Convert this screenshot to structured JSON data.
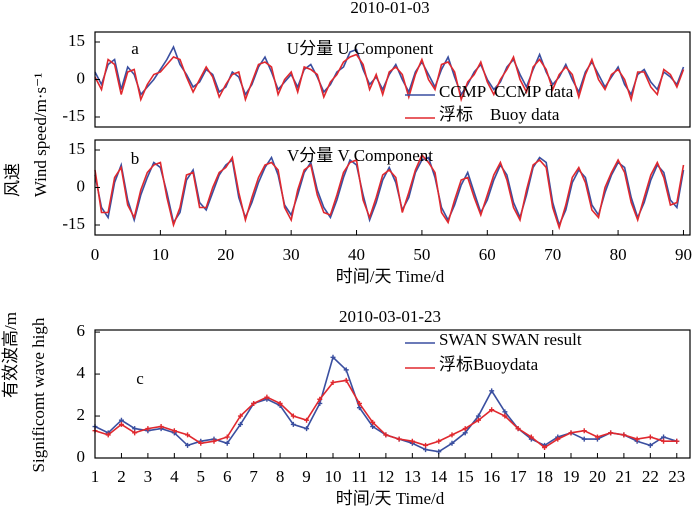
{
  "chart_data": [
    {
      "type": "line",
      "title": "2010-01-03",
      "panel_label": "a",
      "annotation": "U分量 U Component",
      "ylabel": [
        "风速",
        "Wind speed/m·s⁻¹"
      ],
      "legend": "lower right",
      "xlim": [
        0,
        91
      ],
      "ylim": [
        -19,
        19
      ],
      "yticks": [
        -15,
        0,
        15
      ],
      "x": [
        0,
        1,
        2,
        3,
        4,
        5,
        6,
        7,
        8,
        9,
        10,
        11,
        12,
        13,
        14,
        15,
        16,
        17,
        18,
        19,
        20,
        21,
        22,
        23,
        24,
        25,
        26,
        27,
        28,
        29,
        30,
        31,
        32,
        33,
        34,
        35,
        36,
        37,
        38,
        39,
        40,
        41,
        42,
        43,
        44,
        45,
        46,
        47,
        48,
        49,
        50,
        51,
        52,
        53,
        54,
        55,
        56,
        57,
        58,
        59,
        60,
        61,
        62,
        63,
        64,
        65,
        66,
        67,
        68,
        69,
        70,
        71,
        72,
        73,
        74,
        75,
        76,
        77,
        78,
        79,
        80,
        81,
        82,
        83,
        84,
        85,
        86,
        87,
        88,
        89,
        90
      ],
      "series": [
        {
          "name": "CCMP  CCMP data",
          "color": "#3a4fa0",
          "values": [
            3,
            -2,
            6,
            8,
            -4,
            5,
            2,
            -6,
            -3,
            0,
            4,
            8,
            13,
            6,
            2,
            -3,
            -1,
            4,
            2,
            -5,
            -3,
            3,
            1,
            -6,
            -2,
            5,
            9,
            3,
            -4,
            -1,
            2,
            -3,
            4,
            6,
            1,
            -5,
            -2,
            3,
            5,
            11,
            12,
            4,
            -2,
            1,
            -4,
            2,
            6,
            0,
            -5,
            3,
            7,
            2,
            -3,
            4,
            9,
            1,
            -6,
            -2,
            3,
            6,
            0,
            -4,
            -1,
            5,
            8,
            2,
            -3,
            4,
            10,
            3,
            -2,
            1,
            6,
            0,
            -5,
            3,
            7,
            2,
            -3,
            1,
            5,
            -2,
            -6,
            2,
            4,
            -1,
            -4,
            3,
            1,
            -2,
            5
          ]
        },
        {
          "name": "浮标    Buoy data",
          "color": "#e0282e",
          "values": [
            1,
            -4,
            8,
            6,
            -6,
            3,
            4,
            -8,
            -2,
            2,
            3,
            6,
            9,
            8,
            1,
            -5,
            0,
            5,
            1,
            -7,
            -2,
            2,
            3,
            -8,
            -1,
            6,
            7,
            5,
            -6,
            0,
            3,
            -5,
            5,
            4,
            2,
            -7,
            -1,
            2,
            7,
            9,
            10,
            6,
            -4,
            2,
            -6,
            3,
            5,
            2,
            -7,
            2,
            8,
            0,
            -4,
            6,
            7,
            3,
            -8,
            -1,
            2,
            7,
            -1,
            -6,
            0,
            4,
            9,
            0,
            -5,
            5,
            8,
            4,
            -4,
            2,
            5,
            2,
            -7,
            2,
            8,
            0,
            -4,
            2,
            4,
            0,
            -8,
            3,
            3,
            -3,
            -6,
            4,
            2,
            -3,
            4
          ]
        }
      ]
    },
    {
      "type": "line",
      "panel_label": "b",
      "annotation": "V分量 V Component",
      "xlabel": "时间/天 Time/d",
      "xlim": [
        0,
        91
      ],
      "ylim": [
        -19,
        19
      ],
      "yticks": [
        -15,
        0,
        15
      ],
      "xticks": [
        0,
        10,
        20,
        30,
        40,
        50,
        60,
        70,
        80,
        90
      ],
      "x": [
        0,
        1,
        2,
        3,
        4,
        5,
        6,
        7,
        8,
        9,
        10,
        11,
        12,
        13,
        14,
        15,
        16,
        17,
        18,
        19,
        20,
        21,
        22,
        23,
        24,
        25,
        26,
        27,
        28,
        29,
        30,
        31,
        32,
        33,
        34,
        35,
        36,
        37,
        38,
        39,
        40,
        41,
        42,
        43,
        44,
        45,
        46,
        47,
        48,
        49,
        50,
        51,
        52,
        53,
        54,
        55,
        56,
        57,
        58,
        59,
        60,
        61,
        62,
        63,
        64,
        65,
        66,
        67,
        68,
        69,
        70,
        71,
        72,
        73,
        74,
        75,
        76,
        77,
        78,
        79,
        80,
        81,
        82,
        83,
        84,
        85,
        86,
        87,
        88,
        89,
        90
      ],
      "series": [
        {
          "color": "#3a4fa0",
          "values": [
            5,
            -8,
            -12,
            2,
            9,
            -5,
            -13,
            -3,
            4,
            10,
            8,
            -2,
            -14,
            -10,
            3,
            7,
            -6,
            -9,
            -2,
            5,
            9,
            11,
            -4,
            -12,
            -6,
            2,
            8,
            12,
            5,
            -7,
            -11,
            -3,
            6,
            10,
            -1,
            -8,
            -12,
            -5,
            4,
            11,
            9,
            -3,
            -13,
            -6,
            3,
            8,
            2,
            -9,
            -4,
            6,
            11,
            12,
            4,
            -8,
            -13,
            -7,
            1,
            6,
            -2,
            -10,
            -5,
            3,
            9,
            5,
            -6,
            -12,
            -3,
            8,
            12,
            10,
            -6,
            -15,
            -9,
            2,
            7,
            4,
            -7,
            -11,
            -2,
            5,
            10,
            8,
            -4,
            -12,
            -6,
            3,
            9,
            6,
            -5,
            -8,
            7
          ]
        },
        {
          "color": "#e0282e",
          "values": [
            7,
            -10,
            -10,
            4,
            8,
            -7,
            -12,
            -1,
            6,
            9,
            10,
            -4,
            -15,
            -8,
            5,
            6,
            -8,
            -8,
            0,
            6,
            8,
            12,
            -2,
            -13,
            -4,
            4,
            9,
            10,
            7,
            -8,
            -13,
            -1,
            7,
            9,
            -3,
            -10,
            -11,
            -3,
            6,
            10,
            11,
            -5,
            -12,
            -4,
            5,
            7,
            4,
            -10,
            -2,
            7,
            13,
            10,
            6,
            -10,
            -14,
            -5,
            3,
            4,
            -4,
            -11,
            -3,
            5,
            10,
            3,
            -8,
            -13,
            -1,
            9,
            11,
            8,
            -8,
            -16,
            -7,
            4,
            8,
            2,
            -9,
            -12,
            0,
            6,
            11,
            6,
            -6,
            -13,
            -4,
            5,
            10,
            4,
            -7,
            -6,
            9
          ]
        }
      ]
    },
    {
      "type": "line",
      "title": "2010-03-01-23",
      "panel_label": "c",
      "xlabel": "时间/天 Time/d",
      "ylabel": [
        "有效波高/m",
        "Significomt wave high"
      ],
      "legend": "upper right",
      "markers": true,
      "xlim": [
        1,
        23.5
      ],
      "ylim": [
        0,
        6.1
      ],
      "yticks": [
        0,
        2,
        4,
        6
      ],
      "xticks": [
        1,
        2,
        3,
        4,
        5,
        6,
        7,
        8,
        9,
        10,
        11,
        12,
        13,
        14,
        15,
        16,
        17,
        18,
        19,
        20,
        21,
        22,
        23
      ],
      "x": [
        1,
        1.5,
        2,
        2.5,
        3,
        3.5,
        4,
        4.5,
        5,
        5.5,
        6,
        6.5,
        7,
        7.5,
        8,
        8.5,
        9,
        9.5,
        10,
        10.5,
        11,
        11.5,
        12,
        12.5,
        13,
        13.5,
        14,
        14.5,
        15,
        15.5,
        16,
        16.5,
        17,
        17.5,
        18,
        18.5,
        19,
        19.5,
        20,
        20.5,
        21,
        21.5,
        22,
        22.5,
        23
      ],
      "series": [
        {
          "name": "SWAN SWAN result",
          "color": "#3a4fa0",
          "values": [
            1.5,
            1.2,
            1.8,
            1.4,
            1.3,
            1.4,
            1.2,
            0.6,
            0.8,
            0.9,
            0.7,
            1.6,
            2.6,
            2.8,
            2.5,
            1.6,
            1.4,
            2.6,
            4.8,
            4.2,
            2.4,
            1.5,
            1.1,
            0.9,
            0.7,
            0.4,
            0.3,
            0.7,
            1.2,
            2.0,
            3.2,
            2.2,
            1.4,
            0.9,
            0.6,
            1.0,
            1.2,
            0.9,
            0.9,
            1.2,
            1.1,
            0.8,
            0.6,
            1.0,
            0.8
          ]
        },
        {
          "name": "浮标Buoydata",
          "color": "#e0282e",
          "values": [
            1.3,
            1.1,
            1.6,
            1.2,
            1.4,
            1.5,
            1.3,
            1.1,
            0.7,
            0.8,
            1.0,
            2.0,
            2.6,
            2.9,
            2.6,
            2.0,
            1.8,
            2.8,
            3.6,
            3.7,
            2.6,
            1.7,
            1.1,
            0.9,
            0.8,
            0.6,
            0.8,
            1.1,
            1.4,
            1.8,
            2.3,
            2.0,
            1.4,
            1.0,
            0.5,
            0.9,
            1.2,
            1.3,
            1.0,
            1.2,
            1.1,
            0.9,
            1.0,
            0.8,
            0.8
          ]
        }
      ]
    }
  ]
}
